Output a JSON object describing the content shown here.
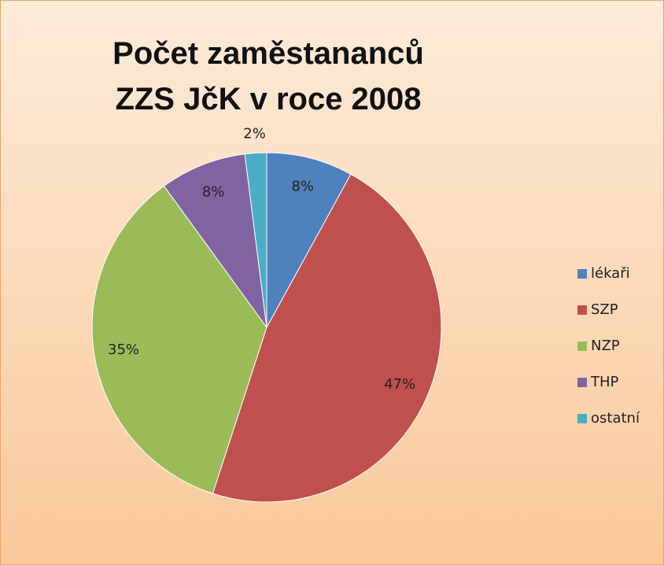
{
  "chart_data": {
    "type": "pie",
    "title": "Počet zaměstananců ZZS JčK v roce 2008",
    "categories": [
      "lékaři",
      "SZP",
      "NZP",
      "THP",
      "ostatní"
    ],
    "values": [
      8,
      47,
      35,
      8,
      2
    ],
    "value_labels": [
      "8%",
      "47%",
      "35%",
      "8%",
      "2%"
    ],
    "colors": [
      "#4f81bd",
      "#c0504d",
      "#9bbb59",
      "#8064a2",
      "#4bacc6"
    ],
    "legend": "right"
  }
}
